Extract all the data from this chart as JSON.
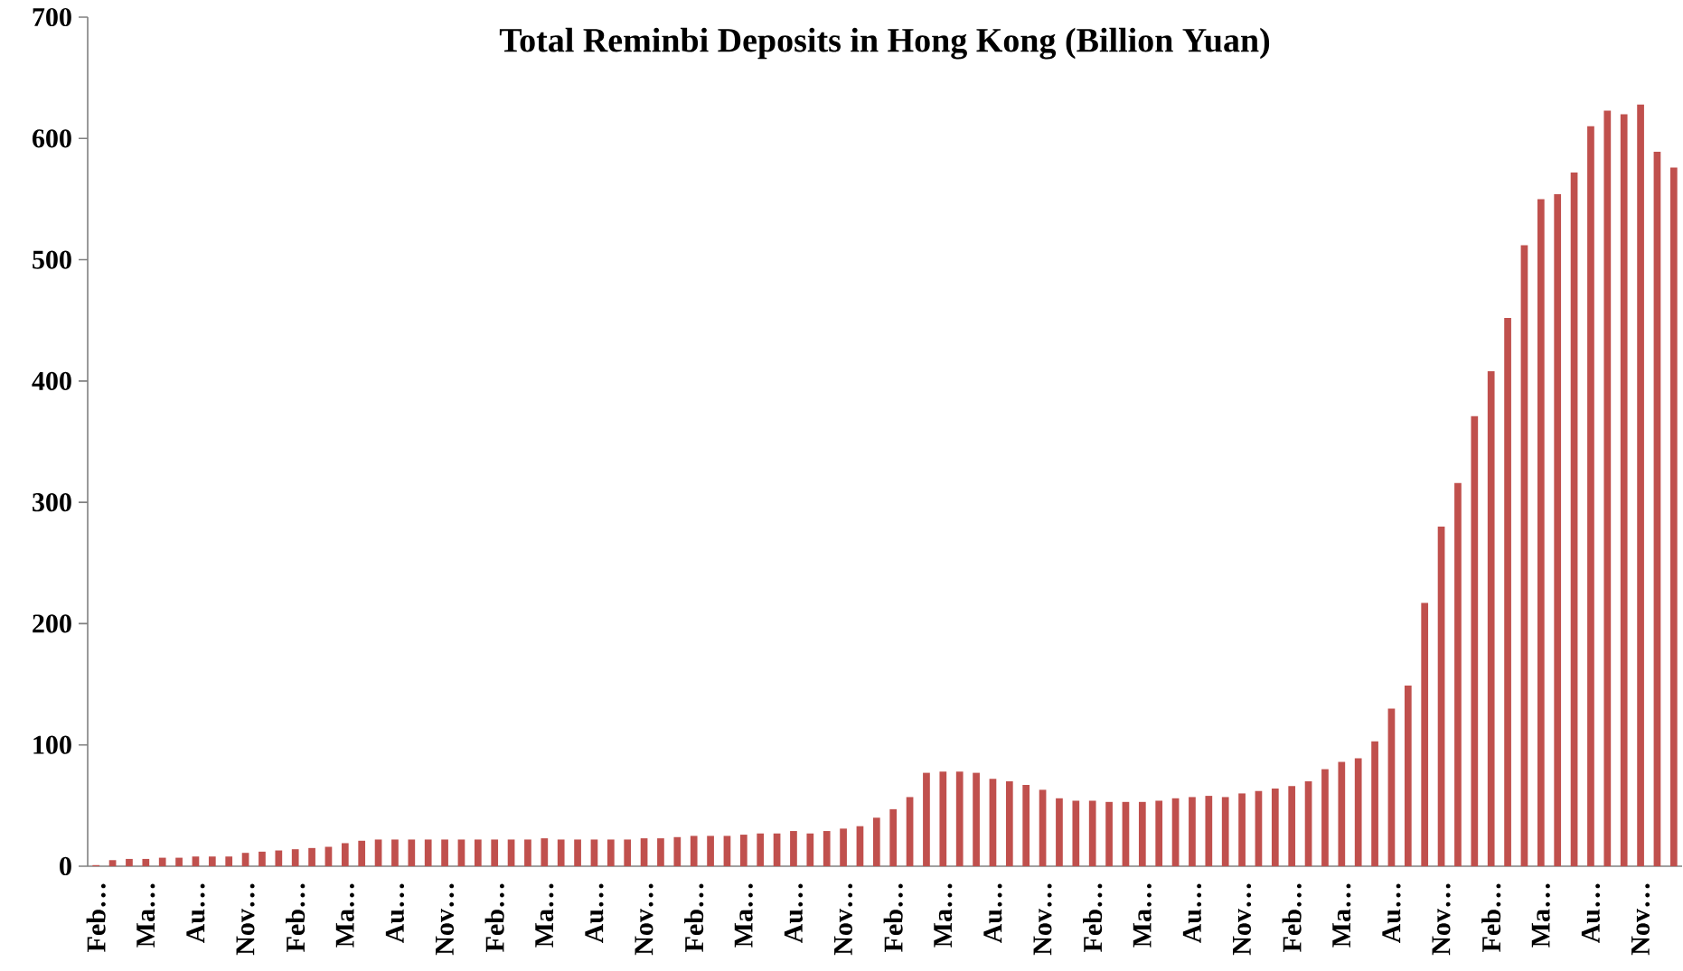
{
  "chart_data": {
    "type": "bar",
    "title": "Total Reminbi Deposits in Hong Kong  (Billion Yuan)",
    "categories": [
      "Feb…",
      null,
      null,
      "Ma…",
      null,
      null,
      "Au…",
      null,
      null,
      "Nov…",
      null,
      null,
      "Feb…",
      null,
      null,
      "Ma…",
      null,
      null,
      "Au…",
      null,
      null,
      "Nov…",
      null,
      null,
      "Feb…",
      null,
      null,
      "Ma…",
      null,
      null,
      "Au…",
      null,
      null,
      "Nov…",
      null,
      null,
      "Feb…",
      null,
      null,
      "Ma…",
      null,
      null,
      "Au…",
      null,
      null,
      "Nov…",
      null,
      null,
      "Feb…",
      null,
      null,
      "Ma…",
      null,
      null,
      "Au…",
      null,
      null,
      "Nov…",
      null,
      null,
      "Feb…",
      null,
      null,
      "Ma…",
      null,
      null,
      "Au…",
      null,
      null,
      "Nov…",
      null,
      null,
      "Feb…",
      null,
      null,
      "Ma…",
      null,
      null,
      "Au…",
      null,
      null,
      "Nov…",
      null,
      null,
      "Feb…",
      null,
      null,
      "Ma…",
      null,
      null,
      "Au…",
      null,
      null,
      "Nov…",
      null,
      null
    ],
    "values": [
      0.9,
      5,
      6,
      6,
      7,
      7,
      8,
      8,
      8,
      11,
      12,
      13,
      14,
      15,
      16,
      19,
      21,
      22,
      22,
      22,
      22,
      22,
      22,
      22,
      22,
      22,
      22,
      23,
      22,
      22,
      22,
      22,
      22,
      23,
      23,
      24,
      25,
      25,
      25,
      26,
      27,
      27,
      29,
      27,
      29,
      31,
      33,
      40,
      47,
      57,
      77,
      78,
      78,
      77,
      72,
      70,
      67,
      63,
      56,
      54,
      54,
      53,
      53,
      53,
      54,
      56,
      57,
      58,
      57,
      60,
      62,
      64,
      66,
      70,
      80,
      86,
      89,
      103,
      130,
      149,
      217,
      280,
      316,
      371,
      408,
      452,
      512,
      550,
      554,
      572,
      610,
      623,
      620,
      628,
      589,
      576
    ],
    "color": "#c0504d",
    "ylim": [
      0,
      700
    ],
    "yticks": [
      0,
      100,
      200,
      300,
      400,
      500,
      600,
      700
    ]
  }
}
